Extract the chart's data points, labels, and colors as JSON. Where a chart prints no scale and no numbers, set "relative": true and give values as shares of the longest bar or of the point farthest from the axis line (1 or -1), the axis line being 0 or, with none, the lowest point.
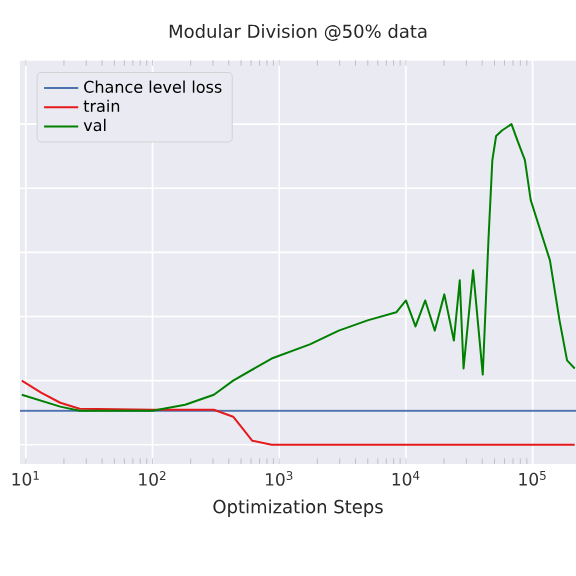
{
  "chart_data": {
    "type": "line",
    "title": "Modular Division @50% data",
    "xlabel": "Optimization Steps",
    "log": "x",
    "relative": true,
    "xlim": [
      9,
      220000
    ],
    "xticks": [
      {
        "value": 10,
        "label": "10$^{1}$"
      },
      {
        "value": 100,
        "label": "10$^{2}$"
      },
      {
        "value": 1000,
        "label": "10$^{3}$"
      },
      {
        "value": 10000,
        "label": "10$^{4}$"
      },
      {
        "value": 100000,
        "label": "10$^{5}$"
      }
    ],
    "grid": true,
    "legend": "top left",
    "tick_labels": "x",
    "line_style": "solid",
    "marker": "none",
    "series": [
      {
        "name": "Chance level loss",
        "color": "#4c72b0",
        "x": [
          9,
          220000
        ],
        "values": [
          0.106,
          0.106
        ]
      },
      {
        "name": "train",
        "color": "#e41a1c",
        "x": [
          9.3,
          13.2,
          18.7,
          26.6,
          100,
          305,
          433,
          515,
          614,
          871,
          215000
        ],
        "values": [
          0.2,
          0.1625,
          0.131,
          0.1125,
          0.109,
          0.109,
          0.0875,
          0.05,
          0.0125,
          0,
          0
        ]
      },
      {
        "name": "val",
        "color": "#008000",
        "x": [
          9.3,
          18.7,
          26.6,
          100,
          181,
          305,
          433,
          871,
          1746,
          2950,
          4980,
          8390,
          10000,
          11900,
          14200,
          16900,
          20100,
          23900,
          26600,
          28500,
          33900,
          40400,
          44800,
          48100,
          51500,
          57300,
          68100,
          75700,
          86900,
          96600,
          115000,
          137000,
          163000,
          187000,
          215000
        ],
        "values": [
          0.156,
          0.119,
          0.106,
          0.106,
          0.125,
          0.156,
          0.2,
          0.269,
          0.313,
          0.356,
          0.388,
          0.413,
          0.45,
          0.369,
          0.45,
          0.356,
          0.469,
          0.325,
          0.513,
          0.238,
          0.544,
          0.219,
          0.638,
          0.888,
          0.963,
          0.98,
          1.0,
          0.95,
          0.888,
          0.763,
          0.669,
          0.575,
          0.388,
          0.263,
          0.238
        ]
      }
    ]
  }
}
